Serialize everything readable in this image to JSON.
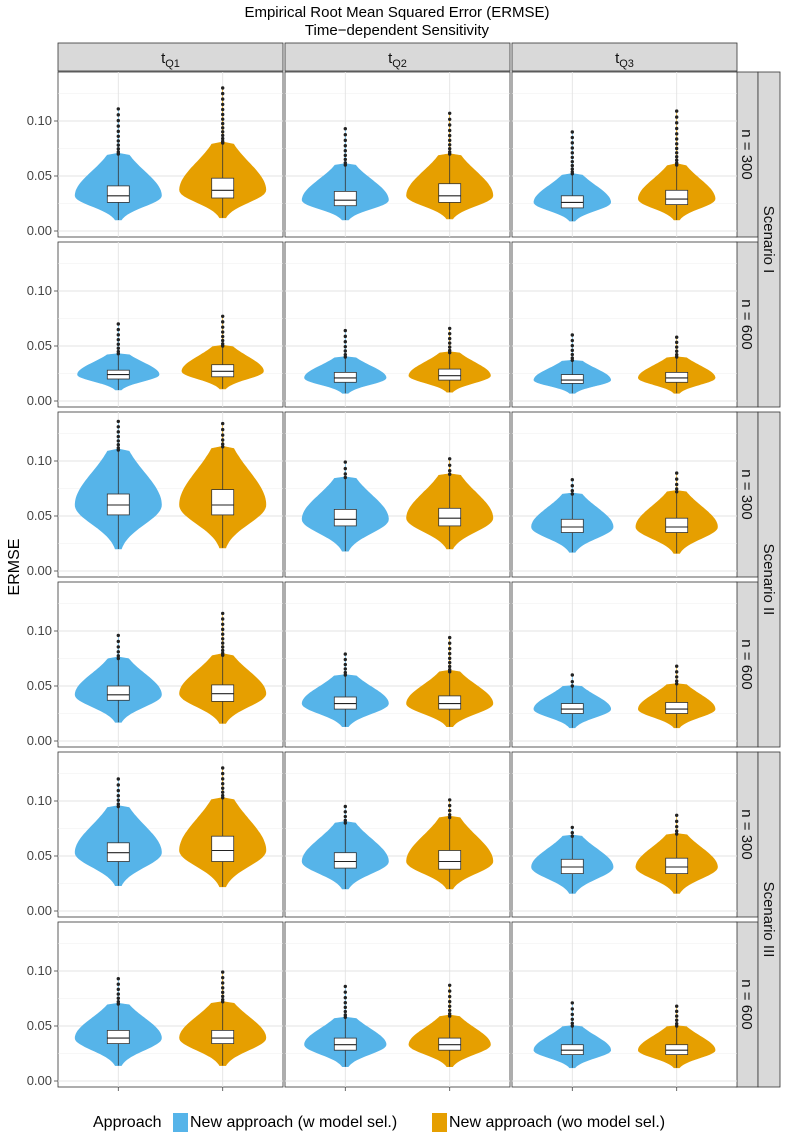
{
  "chart_data": {
    "type": "violin",
    "title": "Empirical Root Mean Squared Error (ERMSE)",
    "subtitle": "Time−dependent Sensitivity",
    "ylabel": "ERMSE",
    "xlabel": "",
    "ylim": [
      0.0,
      0.14
    ],
    "yticks": [
      "0.00",
      "0.05",
      "0.10"
    ],
    "ytick_values": [
      0.0,
      0.05,
      0.1
    ],
    "columns": [
      {
        "base": "t",
        "sub": "Q1"
      },
      {
        "base": "t",
        "sub": "Q2"
      },
      {
        "base": "t",
        "sub": "Q3"
      }
    ],
    "scenarios": [
      "Scenario I",
      "Scenario II",
      "Scenario III"
    ],
    "sample_sizes": [
      "n = 300",
      "n = 600"
    ],
    "legend": {
      "title": "Approach",
      "position": "bottom",
      "items": [
        {
          "label": "New approach (w model sel.)",
          "color": "#56B4E9"
        },
        {
          "label": "New approach (wo model sel.)",
          "color": "#E69F00"
        }
      ]
    },
    "grid": true,
    "panels": [
      {
        "row": 0,
        "col": 0,
        "series": [
          {
            "min": 0.01,
            "q1": 0.026,
            "median": 0.032,
            "q3": 0.041,
            "whisker_hi": 0.07,
            "max": 0.111,
            "width": 0.9
          },
          {
            "min": 0.012,
            "q1": 0.03,
            "median": 0.037,
            "q3": 0.048,
            "whisker_hi": 0.08,
            "max": 0.13,
            "width": 0.9
          }
        ]
      },
      {
        "row": 0,
        "col": 1,
        "series": [
          {
            "min": 0.01,
            "q1": 0.023,
            "median": 0.028,
            "q3": 0.036,
            "whisker_hi": 0.06,
            "max": 0.093,
            "width": 0.9
          },
          {
            "min": 0.011,
            "q1": 0.026,
            "median": 0.032,
            "q3": 0.043,
            "whisker_hi": 0.07,
            "max": 0.107,
            "width": 0.9
          }
        ]
      },
      {
        "row": 0,
        "col": 2,
        "series": [
          {
            "min": 0.009,
            "q1": 0.021,
            "median": 0.026,
            "q3": 0.032,
            "whisker_hi": 0.052,
            "max": 0.09,
            "width": 0.8
          },
          {
            "min": 0.01,
            "q1": 0.024,
            "median": 0.029,
            "q3": 0.037,
            "whisker_hi": 0.06,
            "max": 0.109,
            "width": 0.8
          }
        ]
      },
      {
        "row": 1,
        "col": 0,
        "series": [
          {
            "min": 0.01,
            "q1": 0.02,
            "median": 0.024,
            "q3": 0.028,
            "whisker_hi": 0.043,
            "max": 0.07,
            "width": 0.85
          },
          {
            "min": 0.011,
            "q1": 0.022,
            "median": 0.027,
            "q3": 0.033,
            "whisker_hi": 0.05,
            "max": 0.077,
            "width": 0.85
          }
        ]
      },
      {
        "row": 1,
        "col": 1,
        "series": [
          {
            "min": 0.007,
            "q1": 0.017,
            "median": 0.021,
            "q3": 0.026,
            "whisker_hi": 0.04,
            "max": 0.064,
            "width": 0.85
          },
          {
            "min": 0.008,
            "q1": 0.019,
            "median": 0.023,
            "q3": 0.029,
            "whisker_hi": 0.044,
            "max": 0.066,
            "width": 0.85
          }
        ]
      },
      {
        "row": 1,
        "col": 2,
        "series": [
          {
            "min": 0.007,
            "q1": 0.016,
            "median": 0.019,
            "q3": 0.024,
            "whisker_hi": 0.037,
            "max": 0.06,
            "width": 0.8
          },
          {
            "min": 0.007,
            "q1": 0.017,
            "median": 0.021,
            "q3": 0.026,
            "whisker_hi": 0.04,
            "max": 0.058,
            "width": 0.8
          }
        ]
      },
      {
        "row": 2,
        "col": 0,
        "series": [
          {
            "min": 0.02,
            "q1": 0.051,
            "median": 0.06,
            "q3": 0.07,
            "whisker_hi": 0.11,
            "max": 0.136,
            "width": 0.9
          },
          {
            "min": 0.021,
            "q1": 0.051,
            "median": 0.06,
            "q3": 0.074,
            "whisker_hi": 0.113,
            "max": 0.134,
            "width": 0.9
          }
        ]
      },
      {
        "row": 2,
        "col": 1,
        "series": [
          {
            "min": 0.018,
            "q1": 0.041,
            "median": 0.047,
            "q3": 0.056,
            "whisker_hi": 0.085,
            "max": 0.099,
            "width": 0.9
          },
          {
            "min": 0.02,
            "q1": 0.041,
            "median": 0.048,
            "q3": 0.057,
            "whisker_hi": 0.088,
            "max": 0.102,
            "width": 0.9
          }
        ]
      },
      {
        "row": 2,
        "col": 2,
        "series": [
          {
            "min": 0.017,
            "q1": 0.035,
            "median": 0.04,
            "q3": 0.047,
            "whisker_hi": 0.07,
            "max": 0.083,
            "width": 0.85
          },
          {
            "min": 0.016,
            "q1": 0.035,
            "median": 0.04,
            "q3": 0.048,
            "whisker_hi": 0.072,
            "max": 0.089,
            "width": 0.85
          }
        ]
      },
      {
        "row": 3,
        "col": 0,
        "series": [
          {
            "min": 0.017,
            "q1": 0.037,
            "median": 0.042,
            "q3": 0.05,
            "whisker_hi": 0.075,
            "max": 0.096,
            "width": 0.9
          },
          {
            "min": 0.016,
            "q1": 0.036,
            "median": 0.043,
            "q3": 0.051,
            "whisker_hi": 0.078,
            "max": 0.116,
            "width": 0.9
          }
        ]
      },
      {
        "row": 3,
        "col": 1,
        "series": [
          {
            "min": 0.013,
            "q1": 0.029,
            "median": 0.034,
            "q3": 0.04,
            "whisker_hi": 0.06,
            "max": 0.079,
            "width": 0.9
          },
          {
            "min": 0.013,
            "q1": 0.029,
            "median": 0.034,
            "q3": 0.041,
            "whisker_hi": 0.063,
            "max": 0.094,
            "width": 0.9
          }
        ]
      },
      {
        "row": 3,
        "col": 2,
        "series": [
          {
            "min": 0.012,
            "q1": 0.025,
            "median": 0.029,
            "q3": 0.034,
            "whisker_hi": 0.05,
            "max": 0.06,
            "width": 0.8
          },
          {
            "min": 0.012,
            "q1": 0.025,
            "median": 0.029,
            "q3": 0.035,
            "whisker_hi": 0.052,
            "max": 0.068,
            "width": 0.8
          }
        ]
      },
      {
        "row": 4,
        "col": 0,
        "series": [
          {
            "min": 0.023,
            "q1": 0.045,
            "median": 0.053,
            "q3": 0.062,
            "whisker_hi": 0.095,
            "max": 0.12,
            "width": 0.9
          },
          {
            "min": 0.022,
            "q1": 0.045,
            "median": 0.055,
            "q3": 0.068,
            "whisker_hi": 0.103,
            "max": 0.13,
            "width": 0.9
          }
        ]
      },
      {
        "row": 4,
        "col": 1,
        "series": [
          {
            "min": 0.02,
            "q1": 0.039,
            "median": 0.045,
            "q3": 0.053,
            "whisker_hi": 0.08,
            "max": 0.095,
            "width": 0.9
          },
          {
            "min": 0.02,
            "q1": 0.038,
            "median": 0.045,
            "q3": 0.055,
            "whisker_hi": 0.085,
            "max": 0.101,
            "width": 0.9
          }
        ]
      },
      {
        "row": 4,
        "col": 2,
        "series": [
          {
            "min": 0.016,
            "q1": 0.034,
            "median": 0.04,
            "q3": 0.047,
            "whisker_hi": 0.068,
            "max": 0.076,
            "width": 0.85
          },
          {
            "min": 0.016,
            "q1": 0.034,
            "median": 0.04,
            "q3": 0.048,
            "whisker_hi": 0.07,
            "max": 0.087,
            "width": 0.85
          }
        ]
      },
      {
        "row": 5,
        "col": 0,
        "series": [
          {
            "min": 0.014,
            "q1": 0.034,
            "median": 0.039,
            "q3": 0.046,
            "whisker_hi": 0.07,
            "max": 0.093,
            "width": 0.9
          },
          {
            "min": 0.014,
            "q1": 0.034,
            "median": 0.039,
            "q3": 0.046,
            "whisker_hi": 0.072,
            "max": 0.099,
            "width": 0.9
          }
        ]
      },
      {
        "row": 5,
        "col": 1,
        "series": [
          {
            "min": 0.013,
            "q1": 0.028,
            "median": 0.033,
            "q3": 0.039,
            "whisker_hi": 0.058,
            "max": 0.086,
            "width": 0.85
          },
          {
            "min": 0.013,
            "q1": 0.028,
            "median": 0.033,
            "q3": 0.039,
            "whisker_hi": 0.059,
            "max": 0.087,
            "width": 0.85
          }
        ]
      },
      {
        "row": 5,
        "col": 2,
        "series": [
          {
            "min": 0.012,
            "q1": 0.024,
            "median": 0.028,
            "q3": 0.033,
            "whisker_hi": 0.05,
            "max": 0.071,
            "width": 0.8
          },
          {
            "min": 0.012,
            "q1": 0.024,
            "median": 0.028,
            "q3": 0.033,
            "whisker_hi": 0.05,
            "max": 0.068,
            "width": 0.8
          }
        ]
      }
    ]
  }
}
